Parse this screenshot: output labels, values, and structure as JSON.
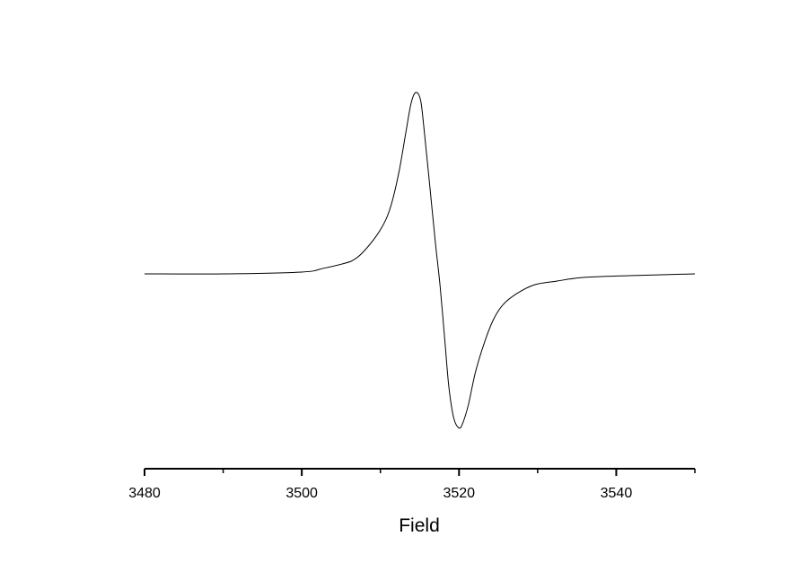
{
  "chart_data": {
    "type": "line",
    "xlabel": "Field",
    "ylabel": "",
    "xlim": [
      3480,
      3550
    ],
    "x_major_ticks": [
      3480,
      3500,
      3520,
      3540
    ],
    "x_minor_ticks": [
      3490,
      3510,
      3530,
      3550
    ],
    "tick_labels": [
      "3480",
      "3500",
      "3520",
      "3540"
    ],
    "y_axis_shown": false,
    "y_units": "normalized intensity (peak = 1)",
    "ylim": [
      -0.85,
      1.0
    ],
    "grid": false,
    "line_color": "#000000",
    "series": [
      {
        "x": [
          3480.0,
          3490.2,
          3500.0,
          3502.7,
          3505.6,
          3506.7,
          3507.8,
          3509.5,
          3510.7,
          3511.5,
          3512.4,
          3513.2,
          3513.9,
          3514.5,
          3515.1,
          3515.5,
          3516.2,
          3517.0,
          3517.6,
          3518.2,
          3518.7,
          3519.3,
          3520.0,
          3520.5,
          3521.2,
          3522.1,
          3523.3,
          3524.4,
          3525.6,
          3527.3,
          3529.6,
          3532.4,
          3535.8,
          3541.6,
          3550.0
        ],
        "y": [
          0,
          0,
          0.01,
          0.03,
          0.06,
          0.08,
          0.12,
          0.21,
          0.3,
          0.4,
          0.57,
          0.77,
          0.94,
          1.0,
          0.96,
          0.82,
          0.52,
          0.17,
          -0.07,
          -0.37,
          -0.62,
          -0.79,
          -0.85,
          -0.82,
          -0.72,
          -0.54,
          -0.37,
          -0.25,
          -0.17,
          -0.11,
          -0.06,
          -0.04,
          -0.02,
          -0.01,
          0.0
        ]
      }
    ]
  }
}
